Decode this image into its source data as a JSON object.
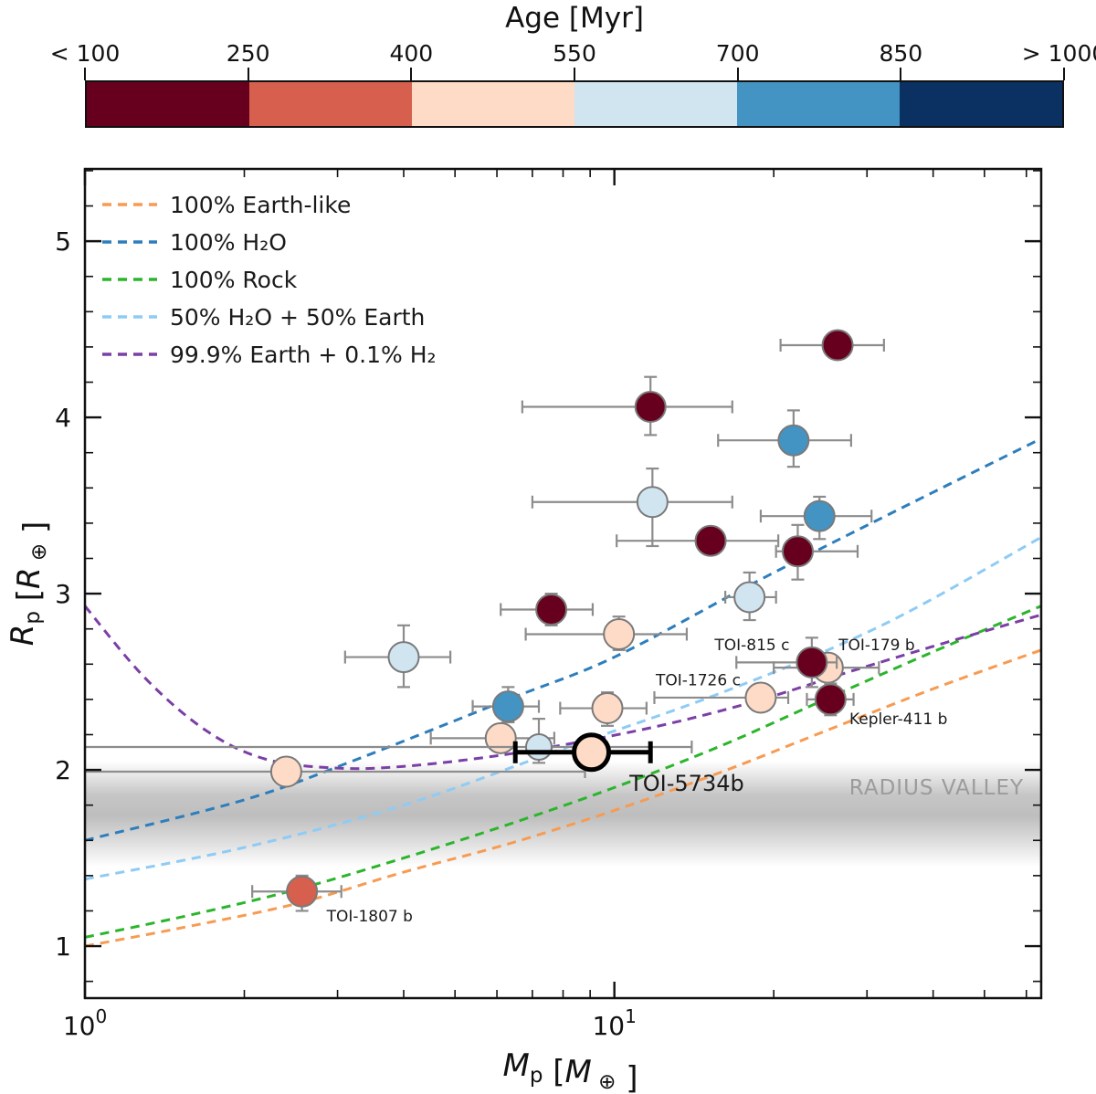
{
  "colorbar": {
    "title": "Age [Myr]",
    "tick_labels": [
      "< 100",
      "250",
      "400",
      "550",
      "700",
      "850",
      "> 1000"
    ],
    "segment_colors": [
      "#67001f",
      "#d6604d",
      "#fddbc7",
      "#d1e5f0",
      "#4393c3",
      "#0a3161"
    ]
  },
  "palette": {
    "dark-red": "#67001f",
    "salmon": "#d6604d",
    "peach": "#fddbc7",
    "light-blue": "#d1e5f0",
    "mid-blue": "#4393c3",
    "navy": "#0a3161",
    "marker-edge": "#7a7a7a",
    "error-bar": "#8c8c8c",
    "frame": "#111111",
    "valley-gray": "#777777"
  },
  "chart_data": {
    "type": "scatter",
    "xlabel": "Mp [M⊕]",
    "ylabel": "Rp [R⊕]",
    "xlabel_rich": [
      {
        "text": "M",
        "style": "italic"
      },
      {
        "text": "p",
        "style": "sub"
      },
      {
        "text": " [",
        "style": "plain"
      },
      {
        "text": "M",
        "style": "italic"
      },
      {
        "text": " ⊕",
        "style": "sub"
      },
      {
        "text": " ]",
        "style": "plain"
      }
    ],
    "ylabel_rich": [
      {
        "text": "R",
        "style": "italic"
      },
      {
        "text": "p",
        "style": "sub"
      },
      {
        "text": " [",
        "style": "plain"
      },
      {
        "text": "R",
        "style": "italic"
      },
      {
        "text": " ⊕",
        "style": "sub"
      },
      {
        "text": " ]",
        "style": "plain"
      }
    ],
    "xscale": "log",
    "xlim": [
      1,
      64
    ],
    "ylim": [
      0.705,
      5.41
    ],
    "x_major_ticks": [
      {
        "value": 1,
        "base": "10",
        "exp": "0"
      },
      {
        "value": 10,
        "base": "10",
        "exp": "1"
      }
    ],
    "x_minor_ticks": [
      2,
      3,
      4,
      5,
      6,
      7,
      8,
      9,
      20,
      30,
      40,
      50,
      60
    ],
    "y_major_ticks": [
      1,
      2,
      3,
      4,
      5
    ],
    "y_minor_step": 0.2,
    "grid": false,
    "legend_position": "upper left",
    "legend": [
      {
        "label": "100% Earth-like",
        "color": "#f79b52"
      },
      {
        "label": "100% H₂O",
        "color": "#2e7ebc"
      },
      {
        "label": "100% Rock",
        "color": "#2cb52c"
      },
      {
        "label": "50% H₂O + 50% Earth",
        "color": "#8ecbf5"
      },
      {
        "label": "99.9% Earth + 0.1% H₂",
        "color": "#7b3fa5"
      }
    ],
    "models": [
      {
        "name": "earth-like",
        "color": "#f79b52",
        "points": [
          [
            1,
            1.0
          ],
          [
            1.5,
            1.1
          ],
          [
            2.5,
            1.24
          ],
          [
            4,
            1.42
          ],
          [
            6.3,
            1.58
          ],
          [
            10,
            1.77
          ],
          [
            16,
            1.99
          ],
          [
            25,
            2.22
          ],
          [
            40,
            2.46
          ],
          [
            64,
            2.68
          ]
        ]
      },
      {
        "name": "h2o-100",
        "color": "#2e7ebc",
        "points": [
          [
            1,
            1.6
          ],
          [
            2,
            1.83
          ],
          [
            3.2,
            2.05
          ],
          [
            6.3,
            2.4
          ],
          [
            10,
            2.64
          ],
          [
            18.6,
            3.07
          ],
          [
            33,
            3.45
          ],
          [
            64,
            3.88
          ]
        ]
      },
      {
        "name": "rock-100",
        "color": "#2cb52c",
        "points": [
          [
            1,
            1.05
          ],
          [
            1.6,
            1.18
          ],
          [
            2.5,
            1.32
          ],
          [
            4,
            1.5
          ],
          [
            6.3,
            1.69
          ],
          [
            10,
            1.9
          ],
          [
            16,
            2.14
          ],
          [
            25,
            2.4
          ],
          [
            40,
            2.67
          ],
          [
            64,
            2.93
          ]
        ]
      },
      {
        "name": "h2o-50-earth-50",
        "color": "#8ecbf5",
        "points": [
          [
            1,
            1.38
          ],
          [
            2,
            1.56
          ],
          [
            4,
            1.8
          ],
          [
            8,
            2.12
          ],
          [
            16,
            2.44
          ],
          [
            32,
            2.82
          ],
          [
            64,
            3.32
          ]
        ]
      },
      {
        "name": "earth-999-h2-01",
        "color": "#7b3fa5",
        "points": [
          [
            1,
            2.93
          ],
          [
            1.3,
            2.52
          ],
          [
            1.7,
            2.22
          ],
          [
            2.2,
            2.06
          ],
          [
            3,
            2.01
          ],
          [
            4,
            2.02
          ],
          [
            6,
            2.08
          ],
          [
            9,
            2.17
          ],
          [
            13,
            2.27
          ],
          [
            19,
            2.4
          ],
          [
            28,
            2.56
          ],
          [
            42,
            2.72
          ],
          [
            64,
            2.88
          ]
        ]
      }
    ],
    "radius_valley": {
      "label": "RADIUS VALLEY",
      "r_top": 2.05,
      "r_bottom": 1.45,
      "label_color": "#9b9b9b"
    },
    "points": [
      {
        "name": "p1",
        "m": 26.4,
        "r": 4.41,
        "m_err": [
          20.6,
          32.3
        ],
        "c": "dark-red"
      },
      {
        "name": "p2",
        "m": 11.7,
        "r": 4.06,
        "m_err": [
          6.7,
          16.7
        ],
        "r_err": [
          3.9,
          4.23
        ],
        "c": "dark-red"
      },
      {
        "name": "p3",
        "m": 21.8,
        "r": 3.87,
        "m_err": [
          15.7,
          28.0
        ],
        "r_err": [
          3.72,
          4.04
        ],
        "c": "mid-blue"
      },
      {
        "name": "p4",
        "m": 11.8,
        "r": 3.52,
        "m_err": [
          7.0,
          16.7
        ],
        "r_err": [
          3.27,
          3.71
        ],
        "c": "light-blue"
      },
      {
        "name": "p5",
        "m": 24.4,
        "r": 3.44,
        "m_err": [
          18.9,
          30.6
        ],
        "r_err": [
          3.31,
          3.55
        ],
        "c": "mid-blue"
      },
      {
        "name": "p6",
        "m": 15.2,
        "r": 3.3,
        "m_err": [
          10.1,
          20.4
        ],
        "r_err": [
          3.24,
          3.36
        ],
        "c": "dark-red"
      },
      {
        "name": "p7",
        "m": 22.2,
        "r": 3.24,
        "m_err": [
          20.2,
          28.8
        ],
        "r_err": [
          3.08,
          3.39
        ],
        "c": "dark-red"
      },
      {
        "name": "p8",
        "m": 7.6,
        "r": 2.91,
        "m_err": [
          6.1,
          9.1
        ],
        "r_err": [
          2.82,
          3.0
        ],
        "c": "dark-red"
      },
      {
        "name": "p9",
        "m": 10.2,
        "r": 2.77,
        "m_err": [
          6.8,
          13.7
        ],
        "r_err": [
          2.68,
          2.87
        ],
        "c": "peach"
      },
      {
        "name": "p10",
        "m": 4.0,
        "r": 2.64,
        "m_err": [
          3.1,
          4.9
        ],
        "r_err": [
          2.47,
          2.82
        ],
        "c": "light-blue"
      },
      {
        "name": "p11",
        "m": 18.0,
        "r": 2.98,
        "m_err": [
          16.2,
          20.2
        ],
        "r_err": [
          2.85,
          3.12
        ],
        "c": "light-blue"
      },
      {
        "name": "p12",
        "m": 6.3,
        "r": 2.36,
        "m_err": [
          5.4,
          7.2
        ],
        "r_err": [
          2.27,
          2.47
        ],
        "c": "mid-blue"
      },
      {
        "name": "p13",
        "m": 9.7,
        "r": 2.35,
        "m_err": [
          7.9,
          11.5
        ],
        "r_err": [
          2.25,
          2.44
        ],
        "c": "peach"
      },
      {
        "name": "TOI-1726 c",
        "m": 18.9,
        "r": 2.41,
        "m_err": [
          11.9,
          21.3
        ],
        "r_err": [
          2.34,
          2.48
        ],
        "c": "peach"
      },
      {
        "name": "p15",
        "m": 6.1,
        "r": 2.18,
        "m_err": [
          4.5,
          7.7
        ],
        "r_err": [
          2.11,
          2.25
        ],
        "c": "peach"
      },
      {
        "name": "p16",
        "m": 7.2,
        "r": 2.13,
        "m_err": [
          1.0,
          14.0
        ],
        "r_err": [
          2.04,
          2.29
        ],
        "c": "light-blue",
        "size": 14
      },
      {
        "name": "p18",
        "m": 2.4,
        "r": 1.99,
        "m_err": [
          1.0,
          8.8
        ],
        "c": "peach"
      },
      {
        "name": "TOI-179 b",
        "m": 25.3,
        "r": 2.58,
        "m_err": [
          20.0,
          31.6
        ],
        "c": "peach"
      },
      {
        "name": "TOI-815 c",
        "m": 23.6,
        "r": 2.61,
        "m_err": [
          17.0,
          26.3
        ],
        "r_err": [
          2.47,
          2.75
        ],
        "c": "dark-red"
      },
      {
        "name": "Kepler-411 b",
        "m": 25.6,
        "r": 2.4,
        "m_err": [
          23.1,
          28.3
        ],
        "r_err": [
          2.31,
          2.49
        ],
        "c": "dark-red"
      },
      {
        "name": "TOI-5734b",
        "m": 9.05,
        "r": 2.1,
        "m_err": [
          6.5,
          11.7
        ],
        "c": "peach",
        "size": 19,
        "highlight": true
      },
      {
        "name": "TOI-1807 b",
        "m": 2.57,
        "r": 1.31,
        "m_err": [
          2.07,
          3.05
        ],
        "r_err": [
          1.2,
          1.4
        ],
        "c": "salmon"
      }
    ],
    "annotations": [
      {
        "text": "TOI-815 c",
        "m": 18.2,
        "r": 2.68,
        "size": 17,
        "color": "#1a1a1a"
      },
      {
        "text": "TOI-179 b",
        "m": 31.3,
        "r": 2.68,
        "size": 17,
        "color": "#1a1a1a"
      },
      {
        "text": "TOI-1726 c",
        "m": 14.4,
        "r": 2.48,
        "size": 17,
        "color": "#1a1a1a"
      },
      {
        "text": "Kepler-411 b",
        "m": 34.4,
        "r": 2.26,
        "size": 17,
        "color": "#1a1a1a"
      },
      {
        "text": "TOI-5734b",
        "m": 13.7,
        "r": 1.88,
        "size": 24,
        "color": "#1a1a1a"
      },
      {
        "text": "TOI-1807 b",
        "m": 3.45,
        "r": 1.14,
        "size": 17,
        "color": "#1a1a1a"
      },
      {
        "text": "RADIUS VALLEY",
        "m": 40.6,
        "r": 1.86,
        "size": 23,
        "color": "#9b9b9b",
        "spacing": 1
      }
    ]
  }
}
